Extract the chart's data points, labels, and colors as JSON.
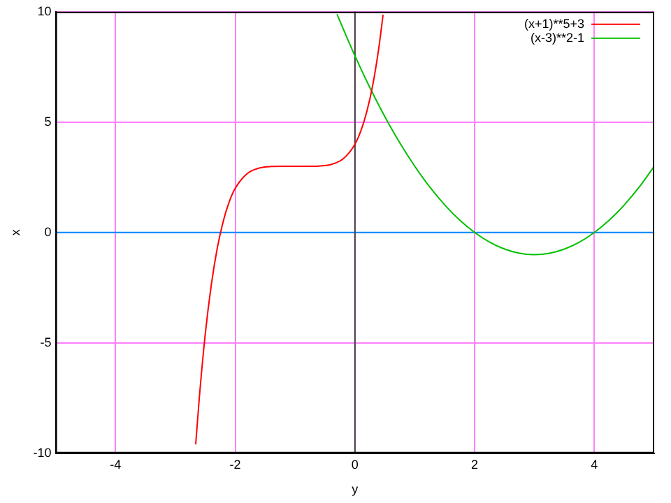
{
  "chart_data": {
    "type": "line",
    "xlabel": "y",
    "ylabel": "x",
    "xlim": [
      -5,
      5
    ],
    "xticks": [
      -4,
      -2,
      0,
      2,
      4
    ],
    "ylim": [
      -10,
      10
    ],
    "yticks": [
      -10,
      -5,
      0,
      5,
      10
    ],
    "grid": true,
    "legend": "top right",
    "ref_lines": [
      {
        "axis": "y",
        "value": 0,
        "color": "#0090ff"
      },
      {
        "axis": "x",
        "value": 0,
        "color": "#404040"
      }
    ],
    "series": [
      {
        "name": "(x+1)**5+3",
        "color": "#ff0000",
        "x": [
          -2.66,
          -2.6,
          -2.5,
          -2.4,
          -2.3,
          -2.2,
          -2.1,
          -2.0,
          -1.8,
          -1.6,
          -1.4,
          -1.2,
          -1.0,
          -0.8,
          -0.6,
          -0.4,
          -0.2,
          0,
          0.1,
          0.2,
          0.3,
          0.4,
          0.47
        ],
        "values": [
          -9.6,
          -7.49,
          -4.59,
          -2.38,
          -0.71,
          0.51,
          1.39,
          2.0,
          2.67,
          2.92,
          2.99,
          3.0,
          3.0,
          3.0,
          3.01,
          3.08,
          3.33,
          4.0,
          4.61,
          5.49,
          6.71,
          8.38,
          9.86
        ]
      },
      {
        "name": "(x-3)**2-1",
        "color": "#00c000",
        "x": [
          -0.3,
          0,
          0.25,
          0.5,
          0.75,
          1,
          1.25,
          1.5,
          1.75,
          2,
          2.25,
          2.5,
          2.75,
          3,
          3.25,
          3.5,
          3.75,
          4,
          4.25,
          4.5,
          4.75,
          5
        ],
        "values": [
          9.89,
          8,
          6.56,
          5.25,
          4.06,
          3,
          2.06,
          1.25,
          0.56,
          0,
          -0.44,
          -0.75,
          -0.94,
          -1,
          -0.94,
          -0.75,
          -0.44,
          0,
          0.56,
          1.25,
          2.06,
          3
        ]
      }
    ]
  }
}
